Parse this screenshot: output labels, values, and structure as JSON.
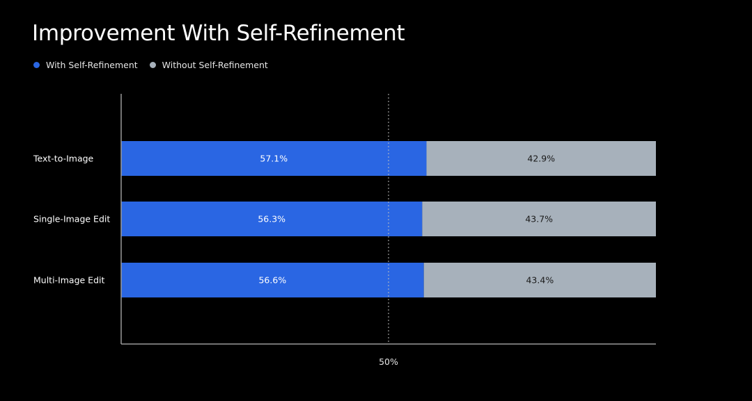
{
  "colors": {
    "background": "#000000",
    "with": "#2a66e3",
    "without": "#a7b1bb",
    "axis": "#9a9a9a",
    "text": "#ffffff",
    "without_text": "#1a1a1a"
  },
  "chart_data": {
    "type": "bar",
    "orientation": "horizontal",
    "stacked": true,
    "title": "Improvement With Self-Refinement",
    "categories": [
      "Text-to-Image",
      "Single-Image Edit",
      "Multi-Image Edit"
    ],
    "series": [
      {
        "name": "With Self-Refinement",
        "values": [
          57.1,
          56.3,
          56.6
        ],
        "labels": [
          "57.1%",
          "56.3%",
          "56.6%"
        ]
      },
      {
        "name": "Without Self-Refinement",
        "values": [
          42.9,
          43.7,
          43.4
        ],
        "labels": [
          "42.9%",
          "43.7%",
          "43.4%"
        ]
      }
    ],
    "xlim": [
      0,
      100
    ],
    "reference_line": {
      "value": 50,
      "label": "50%",
      "style": "dashed"
    },
    "legend_position": "top-left",
    "grid": false
  }
}
